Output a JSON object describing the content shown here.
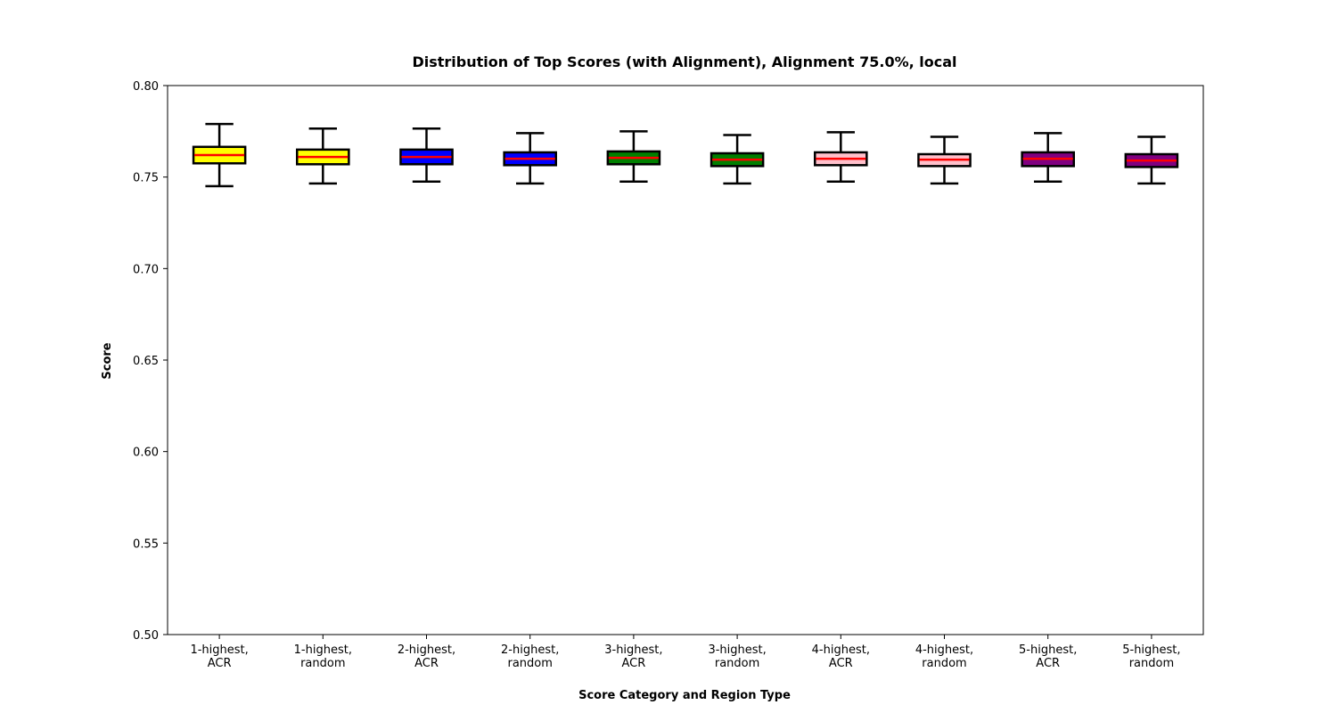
{
  "chart_data": {
    "type": "boxplot",
    "title": "Distribution of Top Scores (with Alignment), Alignment 75.0%, local",
    "xlabel": "Score Category and Region Type",
    "ylabel": "Score",
    "ylim": [
      0.5,
      0.8
    ],
    "yticks": [
      "0.50",
      "0.55",
      "0.60",
      "0.65",
      "0.70",
      "0.75",
      "0.80"
    ],
    "grid": false,
    "median_color": "#ff0000",
    "categories": [
      {
        "label": [
          "1-highest,",
          "ACR"
        ],
        "color": "#ffff00",
        "whisker_low": 0.745,
        "q1": 0.7575,
        "median": 0.762,
        "q3": 0.7665,
        "whisker_high": 0.779
      },
      {
        "label": [
          "1-highest,",
          "random"
        ],
        "color": "#ffff00",
        "whisker_low": 0.7465,
        "q1": 0.757,
        "median": 0.761,
        "q3": 0.765,
        "whisker_high": 0.7765
      },
      {
        "label": [
          "2-highest,",
          "ACR"
        ],
        "color": "#0000ff",
        "whisker_low": 0.7475,
        "q1": 0.757,
        "median": 0.761,
        "q3": 0.765,
        "whisker_high": 0.7765
      },
      {
        "label": [
          "2-highest,",
          "random"
        ],
        "color": "#0000ff",
        "whisker_low": 0.7465,
        "q1": 0.7565,
        "median": 0.76,
        "q3": 0.7635,
        "whisker_high": 0.774
      },
      {
        "label": [
          "3-highest,",
          "ACR"
        ],
        "color": "#008000",
        "whisker_low": 0.7475,
        "q1": 0.757,
        "median": 0.7605,
        "q3": 0.764,
        "whisker_high": 0.775
      },
      {
        "label": [
          "3-highest,",
          "random"
        ],
        "color": "#008000",
        "whisker_low": 0.7465,
        "q1": 0.756,
        "median": 0.7595,
        "q3": 0.763,
        "whisker_high": 0.773
      },
      {
        "label": [
          "4-highest,",
          "ACR"
        ],
        "color": "#ffc0cb",
        "whisker_low": 0.7475,
        "q1": 0.7565,
        "median": 0.76,
        "q3": 0.7635,
        "whisker_high": 0.7745
      },
      {
        "label": [
          "4-highest,",
          "random"
        ],
        "color": "#ffc0cb",
        "whisker_low": 0.7465,
        "q1": 0.756,
        "median": 0.7595,
        "q3": 0.7625,
        "whisker_high": 0.772
      },
      {
        "label": [
          "5-highest,",
          "ACR"
        ],
        "color": "#800080",
        "whisker_low": 0.7475,
        "q1": 0.756,
        "median": 0.76,
        "q3": 0.7635,
        "whisker_high": 0.774
      },
      {
        "label": [
          "5-highest,",
          "random"
        ],
        "color": "#800080",
        "whisker_low": 0.7465,
        "q1": 0.7555,
        "median": 0.759,
        "q3": 0.7625,
        "whisker_high": 0.772
      }
    ]
  }
}
